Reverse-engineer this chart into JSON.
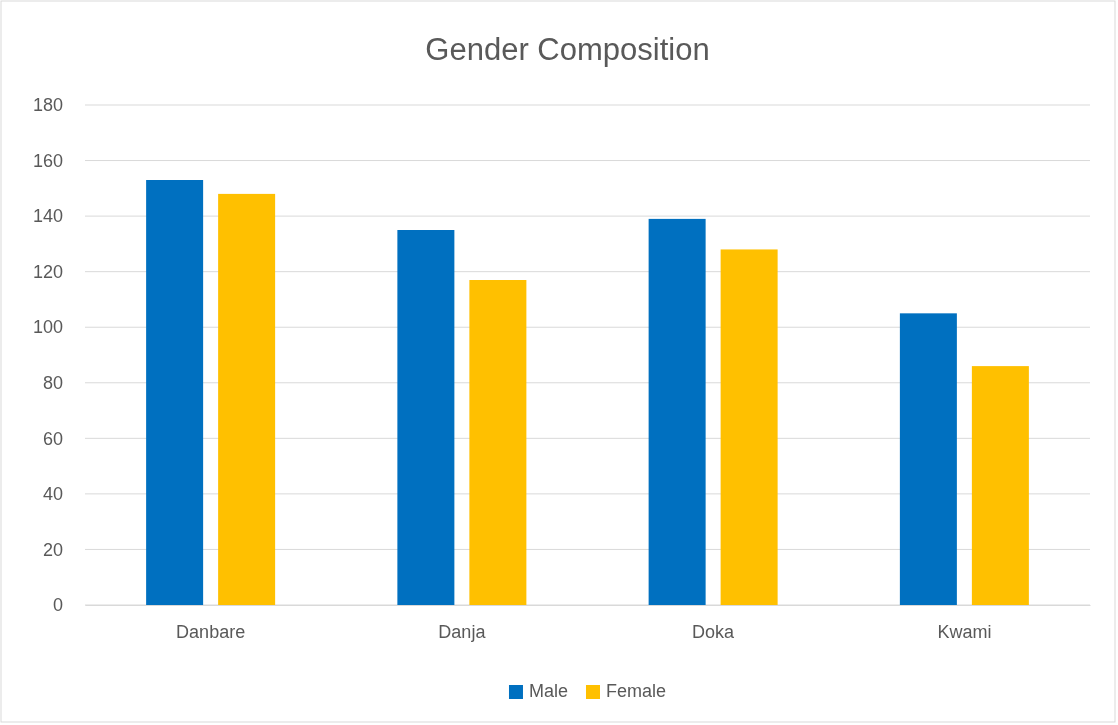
{
  "chart_data": {
    "type": "bar",
    "title": "Gender Composition",
    "categories": [
      "Danbare",
      "Danja",
      "Doka",
      "Kwami"
    ],
    "series": [
      {
        "name": "Male",
        "color": "#0070c0",
        "values": [
          153,
          135,
          139,
          105
        ]
      },
      {
        "name": "Female",
        "color": "#ffc000",
        "values": [
          148,
          117,
          128,
          86
        ]
      }
    ],
    "ylim": [
      0,
      180
    ],
    "yticks": [
      0,
      20,
      40,
      60,
      80,
      100,
      120,
      140,
      160,
      180
    ],
    "grid": "y",
    "legend": "bottom"
  }
}
